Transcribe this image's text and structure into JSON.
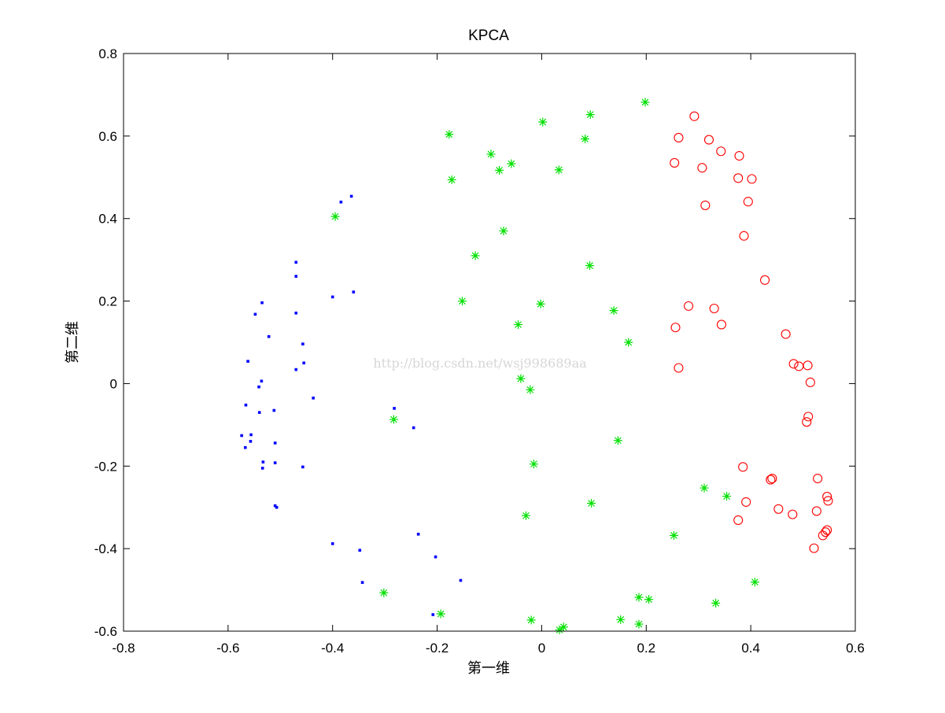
{
  "chart_data": {
    "type": "scatter",
    "title": "KPCA",
    "xlabel": "第一维",
    "ylabel": "第二维",
    "xlim": [
      -0.8,
      0.6
    ],
    "ylim": [
      -0.6,
      0.8
    ],
    "xticks": [
      -0.8,
      -0.6,
      -0.4,
      -0.2,
      0,
      0.2,
      0.4,
      0.6
    ],
    "yticks": [
      -0.6,
      -0.4,
      -0.2,
      0,
      0.2,
      0.4,
      0.6,
      0.8
    ],
    "xtick_labels": [
      "-0.8",
      "-0.6",
      "-0.4",
      "-0.2",
      "0",
      "0.2",
      "0.4",
      "0.6"
    ],
    "ytick_labels": [
      "-0.6",
      "-0.4",
      "-0.2",
      "0",
      "0.2",
      "0.4",
      "0.6",
      "0.8"
    ],
    "grid": false,
    "box": true,
    "watermark": "http://blog.csdn.net/wsj998689aa",
    "series": [
      {
        "marker": "dot",
        "color": "#0000ff",
        "points": [
          [
            -0.364,
            0.454
          ],
          [
            -0.384,
            0.44
          ],
          [
            -0.47,
            0.294
          ],
          [
            -0.47,
            0.26
          ],
          [
            -0.36,
            0.222
          ],
          [
            -0.4,
            0.21
          ],
          [
            -0.535,
            0.196
          ],
          [
            -0.548,
            0.168
          ],
          [
            -0.47,
            0.171
          ],
          [
            -0.522,
            0.114
          ],
          [
            -0.457,
            0.096
          ],
          [
            -0.562,
            0.054
          ],
          [
            -0.455,
            0.05
          ],
          [
            -0.47,
            0.034
          ],
          [
            -0.536,
            0.006
          ],
          [
            -0.541,
            -0.008
          ],
          [
            -0.437,
            -0.035
          ],
          [
            -0.566,
            -0.052
          ],
          [
            -0.512,
            -0.065
          ],
          [
            -0.54,
            -0.07
          ],
          [
            -0.574,
            -0.126
          ],
          [
            -0.556,
            -0.124
          ],
          [
            -0.557,
            -0.14
          ],
          [
            -0.51,
            -0.144
          ],
          [
            -0.567,
            -0.155
          ],
          [
            -0.533,
            -0.19
          ],
          [
            -0.51,
            -0.192
          ],
          [
            -0.534,
            -0.205
          ],
          [
            -0.457,
            -0.202
          ],
          [
            -0.51,
            -0.296
          ],
          [
            -0.507,
            -0.3
          ],
          [
            -0.4,
            -0.388
          ],
          [
            -0.348,
            -0.404
          ],
          [
            -0.343,
            -0.482
          ],
          [
            -0.282,
            -0.06
          ],
          [
            -0.245,
            -0.107
          ],
          [
            -0.236,
            -0.365
          ],
          [
            -0.203,
            -0.42
          ],
          [
            -0.155,
            -0.477
          ],
          [
            -0.208,
            -0.56
          ]
        ]
      },
      {
        "marker": "star",
        "color": "#00e000",
        "points": [
          [
            -0.395,
            0.405
          ],
          [
            -0.177,
            0.604
          ],
          [
            -0.172,
            0.494
          ],
          [
            -0.097,
            0.556
          ],
          [
            -0.081,
            0.517
          ],
          [
            -0.058,
            0.533
          ],
          [
            0.002,
            0.634
          ],
          [
            0.033,
            0.518
          ],
          [
            0.083,
            0.593
          ],
          [
            0.093,
            0.652
          ],
          [
            0.198,
            0.682
          ],
          [
            -0.073,
            0.37
          ],
          [
            -0.127,
            0.31
          ],
          [
            0.092,
            0.286
          ],
          [
            -0.152,
            0.2
          ],
          [
            -0.002,
            0.193
          ],
          [
            0.138,
            0.177
          ],
          [
            -0.045,
            0.143
          ],
          [
            0.166,
            0.1
          ],
          [
            -0.04,
            0.012
          ],
          [
            -0.022,
            -0.015
          ],
          [
            -0.283,
            -0.087
          ],
          [
            0.146,
            -0.138
          ],
          [
            -0.015,
            -0.195
          ],
          [
            0.095,
            -0.29
          ],
          [
            -0.03,
            -0.32
          ],
          [
            0.311,
            -0.253
          ],
          [
            0.354,
            -0.273
          ],
          [
            0.253,
            -0.368
          ],
          [
            -0.302,
            -0.507
          ],
          [
            -0.193,
            -0.558
          ],
          [
            -0.02,
            -0.573
          ],
          [
            0.034,
            -0.597
          ],
          [
            0.042,
            -0.59
          ],
          [
            0.151,
            -0.572
          ],
          [
            0.186,
            -0.518
          ],
          [
            0.205,
            -0.523
          ],
          [
            0.186,
            -0.583
          ],
          [
            0.333,
            -0.532
          ],
          [
            0.408,
            -0.481
          ]
        ]
      },
      {
        "marker": "circle",
        "color": "#ff0000",
        "points": [
          [
            0.292,
            0.648
          ],
          [
            0.262,
            0.596
          ],
          [
            0.32,
            0.591
          ],
          [
            0.343,
            0.563
          ],
          [
            0.378,
            0.552
          ],
          [
            0.254,
            0.535
          ],
          [
            0.307,
            0.523
          ],
          [
            0.376,
            0.498
          ],
          [
            0.402,
            0.496
          ],
          [
            0.395,
            0.441
          ],
          [
            0.313,
            0.432
          ],
          [
            0.387,
            0.358
          ],
          [
            0.427,
            0.251
          ],
          [
            0.281,
            0.188
          ],
          [
            0.33,
            0.182
          ],
          [
            0.344,
            0.143
          ],
          [
            0.256,
            0.136
          ],
          [
            0.467,
            0.12
          ],
          [
            0.262,
            0.038
          ],
          [
            0.482,
            0.048
          ],
          [
            0.492,
            0.042
          ],
          [
            0.509,
            0.044
          ],
          [
            0.514,
            0.003
          ],
          [
            0.51,
            -0.08
          ],
          [
            0.507,
            -0.093
          ],
          [
            0.385,
            -0.202
          ],
          [
            0.441,
            -0.23
          ],
          [
            0.438,
            -0.233
          ],
          [
            0.528,
            -0.23
          ],
          [
            0.546,
            -0.274
          ],
          [
            0.548,
            -0.284
          ],
          [
            0.391,
            -0.287
          ],
          [
            0.453,
            -0.304
          ],
          [
            0.526,
            -0.309
          ],
          [
            0.48,
            -0.317
          ],
          [
            0.376,
            -0.331
          ],
          [
            0.546,
            -0.355
          ],
          [
            0.543,
            -0.36
          ],
          [
            0.538,
            -0.368
          ],
          [
            0.521,
            -0.399
          ]
        ]
      }
    ]
  }
}
